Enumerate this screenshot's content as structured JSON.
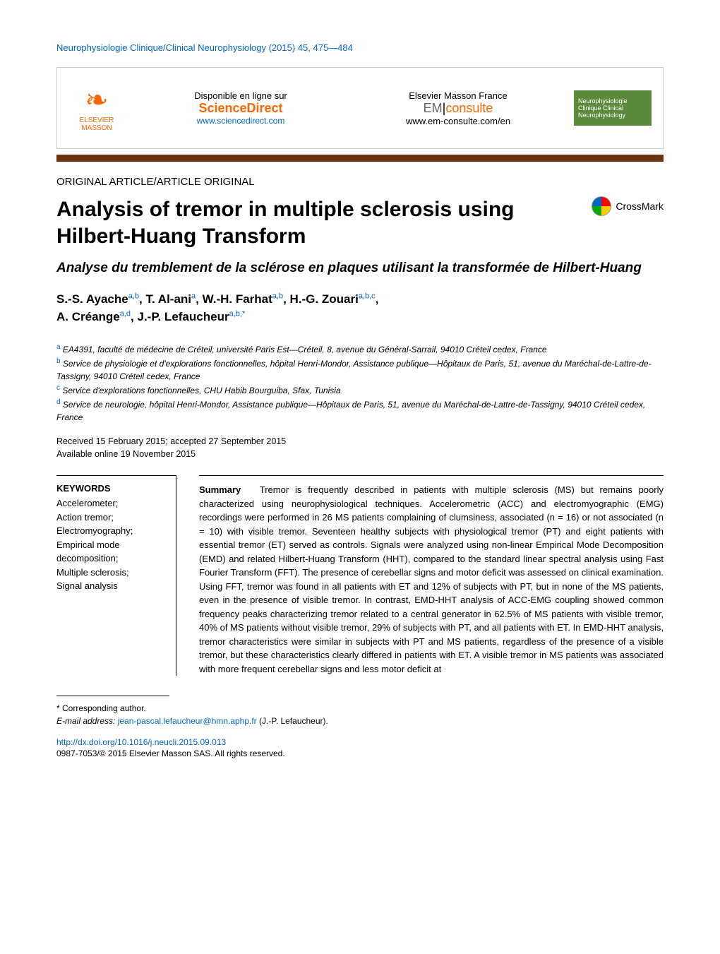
{
  "journal_ref": "Neurophysiologie Clinique/Clinical Neurophysiology (2015) 45, 475—484",
  "header": {
    "elsevier_label_top": "ELSEVIER",
    "elsevier_label_bottom": "MASSON",
    "disponible": "Disponible en ligne sur",
    "sciencedirect": "ScienceDirect",
    "sd_url": "www.sciencedirect.com",
    "em_france": "Elsevier Masson France",
    "em_brand_em": "EM",
    "em_brand_consulte": "consulte",
    "em_url": "www.em-consulte.com/en",
    "badge_text": "Neurophysiologie Clinique Clinical Neurophysiology"
  },
  "article_type": "ORIGINAL ARTICLE/ARTICLE ORIGINAL",
  "title": "Analysis of tremor in multiple sclerosis using Hilbert-Huang Transform",
  "crossmark": "CrossMark",
  "subtitle": "Analyse du tremblement de la sclérose en plaques utilisant la transformée de Hilbert-Huang",
  "authors": {
    "a1_name": "S.-S. Ayache",
    "a1_sup": "a,b",
    "a2_name": "T. Al-ani",
    "a2_sup": "a",
    "a3_name": "W.-H. Farhat",
    "a3_sup": "a,b",
    "a4_name": "H.-G. Zouari",
    "a4_sup": "a,b,c",
    "a5_name": "A. Créange",
    "a5_sup": "a,d",
    "a6_name": "J.-P. Lefaucheur",
    "a6_sup": "a,b,*"
  },
  "affiliations": {
    "a": "EA4391, faculté de médecine de Créteil, université Paris Est—Créteil, 8, avenue du Général-Sarrail, 94010 Créteil cedex, France",
    "b": "Service de physiologie et d'explorations fonctionnelles, hôpital Henri-Mondor, Assistance publique—Hôpitaux de Paris, 51, avenue du Maréchal-de-Lattre-de-Tassigny, 94010 Créteil cedex, France",
    "c": "Service d'explorations fonctionnelles, CHU Habib Bourguiba, Sfax, Tunisia",
    "d": "Service de neurologie, hôpital Henri-Mondor, Assistance publique—Hôpitaux de Paris, 51, avenue du Maréchal-de-Lattre-de-Tassigny, 94010 Créteil cedex, France"
  },
  "dates": {
    "received": "Received 15 February 2015; accepted 27 September 2015",
    "online": "Available online 19 November 2015"
  },
  "keywords": {
    "heading": "KEYWORDS",
    "list": "Accelerometer;\nAction tremor;\nElectromyography;\nEmpirical mode decomposition;\nMultiple sclerosis;\nSignal analysis"
  },
  "summary": {
    "label": "Summary",
    "text": "Tremor is frequently described in patients with multiple sclerosis (MS) but remains poorly characterized using neurophysiological techniques. Accelerometric (ACC) and electromyographic (EMG) recordings were performed in 26 MS patients complaining of clumsiness, associated (n = 16) or not associated (n = 10) with visible tremor. Seventeen healthy subjects with physiological tremor (PT) and eight patients with essential tremor (ET) served as controls. Signals were analyzed using non-linear Empirical Mode Decomposition (EMD) and related Hilbert-Huang Transform (HHT), compared to the standard linear spectral analysis using Fast Fourier Transform (FFT). The presence of cerebellar signs and motor deficit was assessed on clinical examination. Using FFT, tremor was found in all patients with ET and 12% of subjects with PT, but in none of the MS patients, even in the presence of visible tremor. In contrast, EMD-HHT analysis of ACC-EMG coupling showed common frequency peaks characterizing tremor related to a central generator in 62.5% of MS patients with visible tremor, 40% of MS patients without visible tremor, 29% of subjects with PT, and all patients with ET. In EMD-HHT analysis, tremor characteristics were similar in subjects with PT and MS patients, regardless of the presence of a visible tremor, but these characteristics clearly differed in patients with ET. A visible tremor in MS patients was associated with more frequent cerebellar signs and less motor deficit at"
  },
  "corresponding": {
    "label": "* Corresponding author.",
    "email_label": "E-mail address:",
    "email": "jean-pascal.lefaucheur@hmn.aphp.fr",
    "email_suffix": "(J.-P. Lefaucheur)."
  },
  "doi": "http://dx.doi.org/10.1016/j.neucli.2015.09.013",
  "copyright": "0987-7053/© 2015 Elsevier Masson SAS. All rights reserved."
}
